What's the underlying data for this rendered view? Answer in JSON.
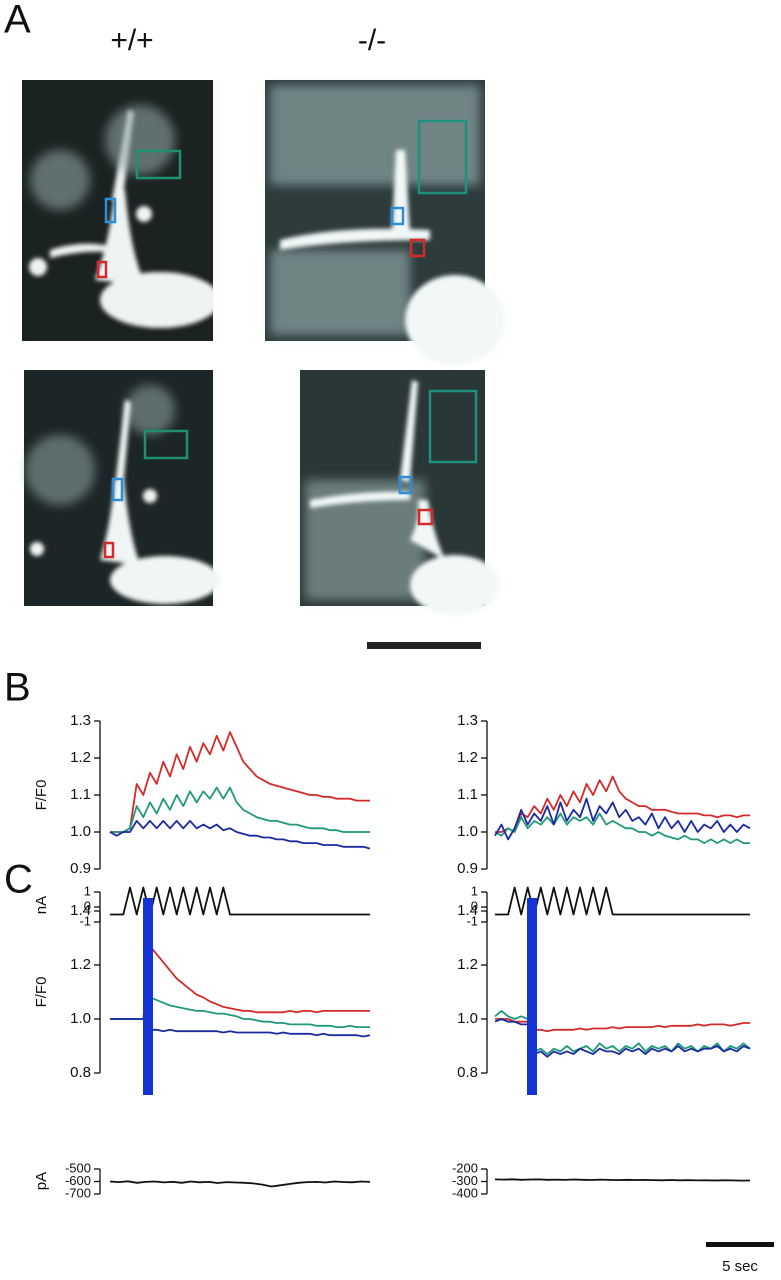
{
  "panel_labels": [
    "A",
    "B",
    "C"
  ],
  "genotypes": [
    "+/+",
    "-/-"
  ],
  "time_scale_label": "5 sec",
  "chart_data": [
    {
      "type": "line",
      "y_label": "F/F0",
      "ylim": [
        0.9,
        1.3
      ],
      "yticks": [
        0.9,
        {
          "value": 1,
          "label": "1.0"
        },
        1.1,
        1.2,
        1.3
      ],
      "series": [
        {
          "color": "#d42a2a",
          "values": [
            1.0,
            1.0,
            1.0,
            1.01,
            1.13,
            1.1,
            1.16,
            1.13,
            1.19,
            1.15,
            1.21,
            1.17,
            1.23,
            1.19,
            1.24,
            1.21,
            1.26,
            1.22,
            1.27,
            1.23,
            1.19,
            1.17,
            1.15,
            1.14,
            1.13,
            1.125,
            1.12,
            1.115,
            1.11,
            1.105,
            1.1,
            1.1,
            1.095,
            1.095,
            1.09,
            1.09,
            1.09,
            1.085,
            1.085,
            1.085
          ]
        },
        {
          "color": "#1f9a78",
          "values": [
            1.0,
            1.0,
            1.0,
            1.01,
            1.07,
            1.04,
            1.08,
            1.05,
            1.09,
            1.06,
            1.1,
            1.07,
            1.11,
            1.08,
            1.11,
            1.09,
            1.12,
            1.09,
            1.12,
            1.08,
            1.06,
            1.05,
            1.04,
            1.035,
            1.03,
            1.03,
            1.025,
            1.02,
            1.02,
            1.015,
            1.01,
            1.01,
            1.01,
            1.005,
            1.005,
            1.0,
            1.0,
            1.0,
            1.0,
            1.0
          ]
        },
        {
          "color": "#1a2aa0",
          "values": [
            1.0,
            0.99,
            1.0,
            1.0,
            1.03,
            1.01,
            1.03,
            1.01,
            1.03,
            1.01,
            1.03,
            1.01,
            1.03,
            1.01,
            1.02,
            1.01,
            1.02,
            1.005,
            1.01,
            1.0,
            0.995,
            0.99,
            0.99,
            0.985,
            0.985,
            0.98,
            0.98,
            0.975,
            0.975,
            0.97,
            0.97,
            0.97,
            0.965,
            0.965,
            0.965,
            0.96,
            0.96,
            0.96,
            0.96,
            0.955
          ]
        }
      ]
    },
    {
      "type": "line",
      "y_label": "nA",
      "ylim": [
        -1,
        1.4
      ],
      "yticks": [
        1,
        0,
        -1
      ],
      "series": [
        {
          "color": "#111111",
          "values": [
            -0.5,
            -0.5,
            -0.5,
            1.3,
            -0.5,
            1.3,
            -0.5,
            1.3,
            -0.5,
            1.3,
            -0.5,
            1.3,
            -0.5,
            1.3,
            -0.5,
            1.3,
            -0.5,
            1.3,
            -0.5,
            -0.5,
            -0.5,
            -0.5,
            -0.5,
            -0.5,
            -0.5,
            -0.5,
            -0.5,
            -0.5,
            -0.5,
            -0.5,
            -0.5,
            -0.5,
            -0.5,
            -0.5,
            -0.5,
            -0.5,
            -0.5,
            -0.5,
            -0.5,
            -0.5
          ]
        }
      ]
    },
    {
      "type": "line",
      "ylim": [
        0.9,
        1.3
      ],
      "yticks": [
        0.9,
        {
          "value": 1,
          "label": "1.0"
        },
        1.1,
        1.2,
        1.3
      ],
      "series": [
        {
          "color": "#d42a2a",
          "values": [
            1.0,
            1.0,
            1.01,
            1.0,
            1.05,
            1.04,
            1.07,
            1.05,
            1.09,
            1.06,
            1.1,
            1.07,
            1.11,
            1.08,
            1.13,
            1.1,
            1.14,
            1.11,
            1.15,
            1.11,
            1.09,
            1.08,
            1.07,
            1.07,
            1.06,
            1.06,
            1.06,
            1.055,
            1.05,
            1.05,
            1.05,
            1.05,
            1.045,
            1.045,
            1.04,
            1.045,
            1.045,
            1.04,
            1.045,
            1.045
          ]
        },
        {
          "color": "#1f9a78",
          "values": [
            1.0,
            0.99,
            1.01,
            1.0,
            1.04,
            1.01,
            1.03,
            1.02,
            1.04,
            1.02,
            1.05,
            1.02,
            1.04,
            1.03,
            1.04,
            1.02,
            1.05,
            1.02,
            1.03,
            1.02,
            1.01,
            1.01,
            1.0,
            1.0,
            0.99,
            1.0,
            0.99,
            0.985,
            0.98,
            0.99,
            0.98,
            0.98,
            0.97,
            0.98,
            0.97,
            0.98,
            0.97,
            0.98,
            0.97,
            0.97
          ]
        },
        {
          "color": "#1a2aa0",
          "values": [
            0.99,
            1.02,
            0.98,
            1.01,
            1.06,
            1.02,
            1.05,
            1.03,
            1.07,
            1.02,
            1.08,
            1.03,
            1.06,
            1.04,
            1.09,
            1.03,
            1.07,
            1.05,
            1.08,
            1.04,
            1.06,
            1.03,
            1.04,
            1.02,
            1.05,
            1.01,
            1.04,
            1.01,
            1.03,
            1.0,
            1.03,
            1.0,
            1.02,
            1.01,
            1.03,
            1.0,
            1.02,
            1.0,
            1.02,
            1.01
          ]
        }
      ]
    },
    {
      "type": "line",
      "ylim": [
        -1,
        1.4
      ],
      "yticks": [
        1,
        0,
        -1
      ],
      "series": [
        {
          "color": "#111111",
          "values": [
            -0.5,
            -0.5,
            -0.5,
            1.3,
            -0.5,
            1.3,
            -0.5,
            1.3,
            -0.5,
            1.3,
            -0.5,
            1.3,
            -0.5,
            1.3,
            -0.5,
            1.3,
            -0.5,
            1.3,
            -0.5,
            -0.5,
            -0.5,
            -0.5,
            -0.5,
            -0.5,
            -0.5,
            -0.5,
            -0.5,
            -0.5,
            -0.5,
            -0.5,
            -0.5,
            -0.5,
            -0.5,
            -0.5,
            -0.5,
            -0.5,
            -0.5,
            -0.5,
            -0.5,
            -0.5
          ]
        }
      ]
    },
    {
      "type": "line",
      "y_label": "F/F0",
      "ylim": [
        0.8,
        1.4
      ],
      "yticks": [
        1.4,
        1.2,
        {
          "value": 1,
          "label": "1.0"
        },
        0.8
      ],
      "series": [
        {
          "color": "#d42a2a",
          "values": [
            1.0,
            1.0,
            1.0,
            1.0,
            1.0,
            1.0,
            1.27,
            1.24,
            1.21,
            1.18,
            1.15,
            1.13,
            1.11,
            1.09,
            1.08,
            1.065,
            1.055,
            1.045,
            1.04,
            1.035,
            1.03,
            1.03,
            1.025,
            1.025,
            1.025,
            1.025,
            1.025,
            1.03,
            1.025,
            1.03,
            1.03,
            1.025,
            1.03,
            1.03,
            1.03,
            1.03,
            1.03,
            1.03,
            1.03,
            1.03
          ]
        },
        {
          "color": "#1f9a78",
          "values": [
            1.0,
            1.0,
            1.0,
            1.0,
            1.0,
            1.0,
            1.08,
            1.07,
            1.06,
            1.05,
            1.045,
            1.04,
            1.035,
            1.03,
            1.03,
            1.025,
            1.02,
            1.02,
            1.015,
            1.01,
            1.0,
            1.0,
            0.995,
            0.99,
            0.99,
            0.985,
            0.985,
            0.98,
            0.98,
            0.98,
            0.98,
            0.975,
            0.975,
            0.975,
            0.97,
            0.97,
            0.975,
            0.97,
            0.97,
            0.97
          ]
        },
        {
          "color": "#1a2aa0",
          "values": [
            1.0,
            1.0,
            1.0,
            1.0,
            1.0,
            1.0,
            0.96,
            0.96,
            0.955,
            0.96,
            0.955,
            0.955,
            0.955,
            0.955,
            0.955,
            0.955,
            0.955,
            0.95,
            0.955,
            0.95,
            0.95,
            0.95,
            0.95,
            0.95,
            0.95,
            0.945,
            0.95,
            0.945,
            0.945,
            0.945,
            0.945,
            0.94,
            0.945,
            0.94,
            0.94,
            0.94,
            0.94,
            0.94,
            0.935,
            0.94
          ]
        }
      ]
    },
    {
      "type": "line",
      "y_label": "pA",
      "ylim": [
        -700,
        -500
      ],
      "yticks": [
        -500,
        -600,
        -700
      ],
      "series": [
        {
          "color": "#111111",
          "values": [
            -600,
            -605,
            -598,
            -610,
            -603,
            -600,
            -607,
            -602,
            -610,
            -600,
            -606,
            -603,
            -612,
            -605,
            -608,
            -610,
            -615,
            -625,
            -640,
            -630,
            -620,
            -610,
            -605,
            -603,
            -608,
            -600,
            -604,
            -606,
            -600,
            -603
          ]
        }
      ]
    },
    {
      "type": "line",
      "ylim": [
        0.8,
        1.4
      ],
      "yticks": [
        1.4,
        1.2,
        {
          "value": 1,
          "label": "1.0"
        },
        0.8
      ],
      "series": [
        {
          "color": "#d42a2a",
          "values": [
            1.0,
            1.0,
            1.0,
            0.99,
            0.99,
            0.99,
            0.96,
            0.96,
            0.955,
            0.96,
            0.96,
            0.96,
            0.96,
            0.965,
            0.96,
            0.965,
            0.965,
            0.965,
            0.97,
            0.965,
            0.97,
            0.97,
            0.97,
            0.97,
            0.97,
            0.975,
            0.97,
            0.975,
            0.975,
            0.975,
            0.975,
            0.98,
            0.975,
            0.98,
            0.98,
            0.98,
            0.975,
            0.98,
            0.985,
            0.985
          ]
        },
        {
          "color": "#1f9a78",
          "values": [
            1.01,
            1.03,
            1.01,
            1.0,
            1.01,
            1.0,
            0.88,
            0.89,
            0.87,
            0.89,
            0.88,
            0.9,
            0.88,
            0.89,
            0.9,
            0.88,
            0.91,
            0.89,
            0.9,
            0.88,
            0.9,
            0.89,
            0.91,
            0.88,
            0.9,
            0.89,
            0.9,
            0.88,
            0.91,
            0.89,
            0.9,
            0.88,
            0.9,
            0.89,
            0.91,
            0.88,
            0.9,
            0.89,
            0.91,
            0.89
          ]
        },
        {
          "color": "#1a2aa0",
          "values": [
            0.99,
            1.0,
            0.99,
            0.99,
            0.98,
            0.98,
            0.87,
            0.88,
            0.86,
            0.88,
            0.87,
            0.88,
            0.87,
            0.89,
            0.88,
            0.87,
            0.89,
            0.88,
            0.88,
            0.87,
            0.89,
            0.88,
            0.89,
            0.87,
            0.89,
            0.88,
            0.89,
            0.88,
            0.9,
            0.88,
            0.89,
            0.88,
            0.89,
            0.89,
            0.9,
            0.88,
            0.89,
            0.88,
            0.9,
            0.89
          ]
        }
      ]
    },
    {
      "type": "line",
      "ylim": [
        -400,
        -200
      ],
      "yticks": [
        -200,
        -300,
        -400
      ],
      "series": [
        {
          "color": "#111111",
          "values": [
            -283,
            -285,
            -282,
            -286,
            -284,
            -283,
            -286,
            -285,
            -287,
            -284,
            -286,
            -288,
            -285,
            -287,
            -289,
            -286,
            -288,
            -287,
            -289,
            -290,
            -288,
            -290,
            -289,
            -291,
            -290,
            -292,
            -290,
            -291,
            -293,
            -292
          ]
        }
      ]
    }
  ]
}
